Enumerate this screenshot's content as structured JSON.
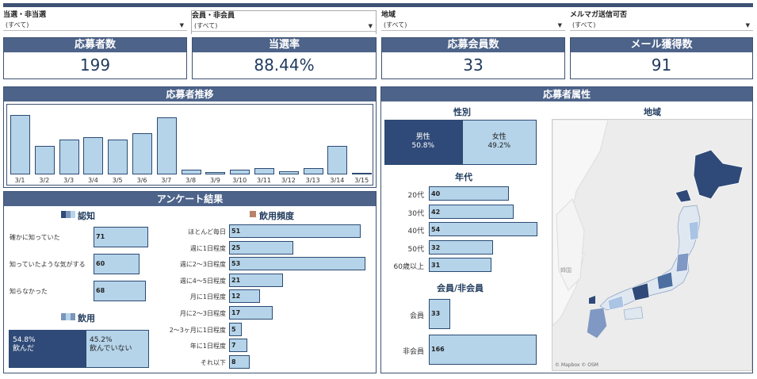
{
  "filters": [
    {
      "label": "当選・非当選",
      "value": "(すべて)"
    },
    {
      "label": "会員・非会員",
      "value": "(すべて)"
    },
    {
      "label": "地域",
      "value": "(すべて)"
    },
    {
      "label": "メルマガ送信可否",
      "value": "(すべて)"
    }
  ],
  "kpis": [
    {
      "label": "応募者数",
      "value": "199"
    },
    {
      "label": "当選率",
      "value": "88.44%"
    },
    {
      "label": "応募会員数",
      "value": "33"
    },
    {
      "label": "メール獲得数",
      "value": "91"
    }
  ],
  "trend": {
    "title": "応募者推移",
    "categories": [
      "3/1",
      "3/2",
      "3/3",
      "3/4",
      "3/5",
      "3/6",
      "3/7",
      "3/8",
      "3/9",
      "3/10",
      "3/11",
      "3/12",
      "3/13",
      "3/14",
      "3/15"
    ],
    "values": [
      22,
      10.5,
      13,
      13.8,
      13,
      15.2,
      21,
      1.8,
      0.8,
      1.8,
      2.2,
      1.2,
      2.2,
      10.5,
      0.6
    ]
  },
  "survey": {
    "title": "アンケート結果",
    "awareness": {
      "title": "認知",
      "items": [
        {
          "label": "確かに知っていた",
          "value": 71
        },
        {
          "label": "知っていたような気がする",
          "value": 60
        },
        {
          "label": "知らなかった",
          "value": 68
        }
      ]
    },
    "drink": {
      "title": "飲用",
      "items": [
        {
          "pct": "54.8%",
          "label": "飲んだ",
          "fraction": 0.548
        },
        {
          "pct": "45.2%",
          "label": "飲んでいない",
          "fraction": 0.452
        }
      ]
    },
    "frequency": {
      "title": "飲用頻度",
      "items": [
        {
          "label": "ほとんど毎日",
          "value": 51
        },
        {
          "label": "週に1日程度",
          "value": 25
        },
        {
          "label": "週に2～3日程度",
          "value": 53
        },
        {
          "label": "週に4～5日程度",
          "value": 21
        },
        {
          "label": "月に1日程度",
          "value": 12
        },
        {
          "label": "月に2～3日程度",
          "value": 17
        },
        {
          "label": "2～3ヶ月に1日程度",
          "value": 5
        },
        {
          "label": "年に1日程度",
          "value": 7
        },
        {
          "label": "それ以下",
          "value": 8
        }
      ]
    }
  },
  "attributes": {
    "title": "応募者属性",
    "gender": {
      "title": "性別",
      "items": [
        {
          "label": "男性",
          "pct": "50.8%",
          "fraction": 0.508
        },
        {
          "label": "女性",
          "pct": "49.2%",
          "fraction": 0.492
        }
      ]
    },
    "age": {
      "title": "年代",
      "items": [
        {
          "label": "20代",
          "value": 40
        },
        {
          "label": "30代",
          "value": 42
        },
        {
          "label": "40代",
          "value": 54
        },
        {
          "label": "50代",
          "value": 32
        },
        {
          "label": "60歳以上",
          "value": 31
        }
      ]
    },
    "member": {
      "title": "会員/非会員",
      "items": [
        {
          "label": "会員",
          "value": 33
        },
        {
          "label": "非会員",
          "value": 166
        }
      ]
    },
    "region": {
      "title": "地域",
      "map_labels": [
        "韓国"
      ],
      "credit": "© Mapbox © OSM"
    }
  },
  "colors": {
    "dark": "#2f4a78",
    "light": "#b5d4ea",
    "header": "#4d6389"
  }
}
